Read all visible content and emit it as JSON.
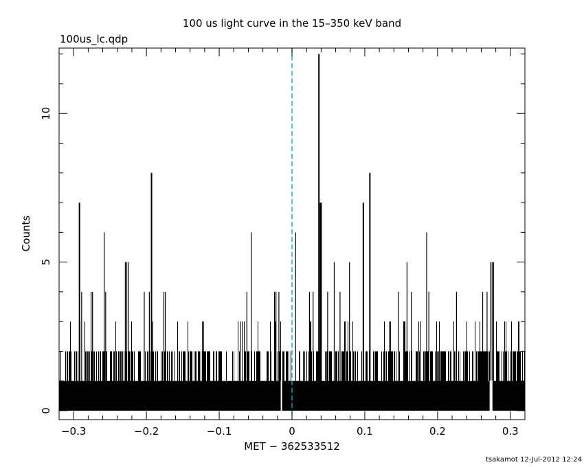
{
  "chart_data": {
    "type": "bar",
    "title": "100 us light curve in the 15–350 keV band",
    "file_label": "100us_lc.qdp",
    "xlabel": "MET − 362533512",
    "ylabel": "Counts",
    "footer": "tsakamot 12-Jul-2012 12:24",
    "xlim": [
      -0.32,
      0.32
    ],
    "ylim": [
      -0.3,
      12.2
    ],
    "x_ticks": [
      -0.3,
      -0.2,
      -0.1,
      0,
      0.1,
      0.2,
      0.3
    ],
    "x_tick_labels": [
      "−0.3",
      "−0.2",
      "−0.1",
      "0",
      "0.1",
      "0.2",
      "0.3"
    ],
    "y_ticks": [
      0,
      5,
      10
    ],
    "y_tick_labels": [
      "0",
      "5",
      "10"
    ],
    "bin_width": 0.0001,
    "baseline_counts": 1,
    "reference_line": {
      "x": 0,
      "style": "dashed",
      "color": "#1fa0c0"
    },
    "bar_color": "#000000",
    "gaps": [
      [
        -0.0155,
        -0.0145
      ],
      [
        0.2715,
        0.2725
      ],
      [
        0.2735,
        0.2745
      ]
    ],
    "spikes": [
      {
        "x": -0.292,
        "y": 7
      },
      {
        "x": -0.258,
        "y": 6
      },
      {
        "x": -0.229,
        "y": 5
      },
      {
        "x": -0.227,
        "y": 5
      },
      {
        "x": -0.225,
        "y": 5
      },
      {
        "x": -0.193,
        "y": 8
      },
      {
        "x": -0.056,
        "y": 6
      },
      {
        "x": 0.005,
        "y": 6
      },
      {
        "x": 0.037,
        "y": 12
      },
      {
        "x": 0.039,
        "y": 7
      },
      {
        "x": 0.04,
        "y": 7
      },
      {
        "x": 0.058,
        "y": 5
      },
      {
        "x": 0.079,
        "y": 5
      },
      {
        "x": 0.098,
        "y": 7
      },
      {
        "x": 0.107,
        "y": 8
      },
      {
        "x": 0.158,
        "y": 5
      },
      {
        "x": 0.185,
        "y": 6
      },
      {
        "x": 0.273,
        "y": 5
      },
      {
        "x": 0.275,
        "y": 5
      },
      {
        "x": 0.277,
        "y": 5
      },
      {
        "x": -0.289,
        "y": 4
      },
      {
        "x": -0.276,
        "y": 4
      },
      {
        "x": -0.274,
        "y": 4
      },
      {
        "x": -0.256,
        "y": 4
      },
      {
        "x": -0.203,
        "y": 4
      },
      {
        "x": -0.196,
        "y": 4
      },
      {
        "x": -0.176,
        "y": 4
      },
      {
        "x": -0.174,
        "y": 4
      },
      {
        "x": -0.062,
        "y": 4
      },
      {
        "x": -0.024,
        "y": 4
      },
      {
        "x": -0.022,
        "y": 4
      },
      {
        "x": -0.018,
        "y": 4
      },
      {
        "x": 0.024,
        "y": 4
      },
      {
        "x": 0.029,
        "y": 4
      },
      {
        "x": 0.049,
        "y": 4
      },
      {
        "x": 0.066,
        "y": 4
      },
      {
        "x": 0.146,
        "y": 4
      },
      {
        "x": 0.164,
        "y": 4
      },
      {
        "x": 0.188,
        "y": 4
      },
      {
        "x": 0.226,
        "y": 4
      },
      {
        "x": 0.262,
        "y": 4
      },
      {
        "x": 0.268,
        "y": 4
      }
    ]
  }
}
